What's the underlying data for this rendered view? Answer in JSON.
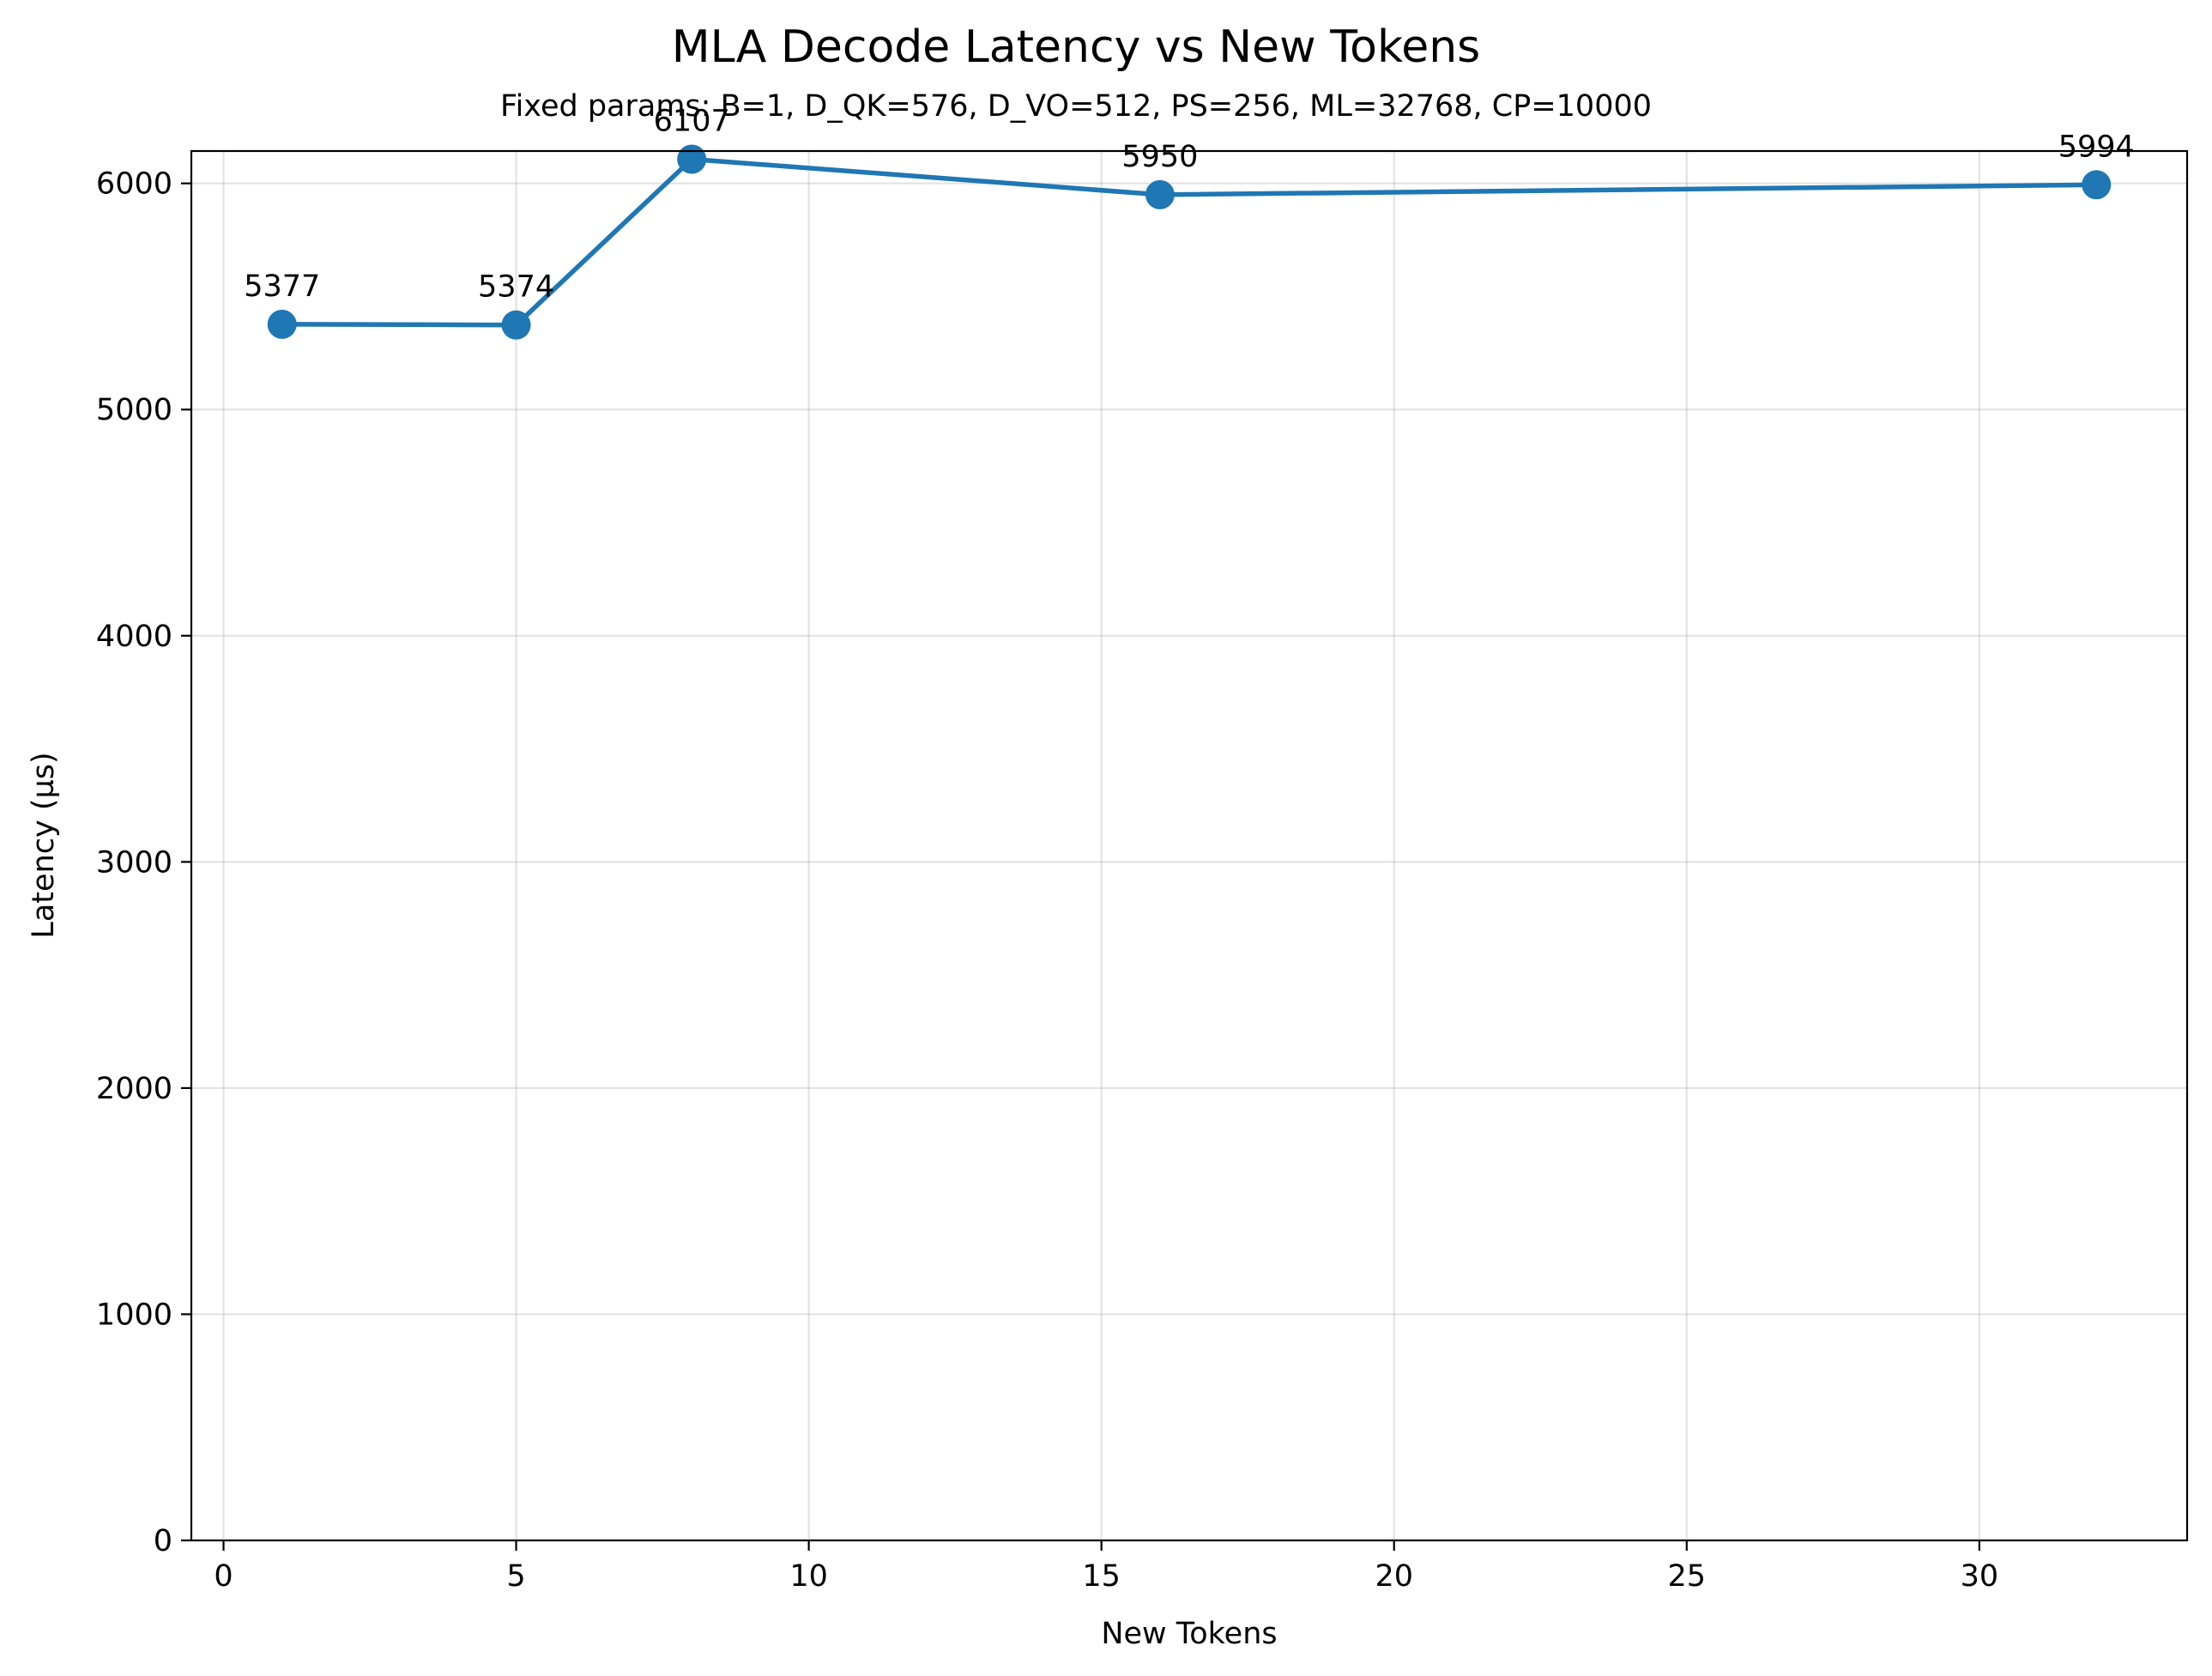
{
  "chart_data": {
    "type": "line",
    "title": "MLA Decode Latency vs New Tokens",
    "subtitle": "Fixed params: B=1, D_QK=576, D_VO=512, PS=256, ML=32768, CP=10000",
    "xlabel": "New Tokens",
    "ylabel": "Latency (µs)",
    "xlim": [
      -0.55,
      33.55
    ],
    "ylim": [
      0,
      6143
    ],
    "xticks": [
      0,
      5,
      10,
      15,
      20,
      25,
      30
    ],
    "yticks": [
      0,
      1000,
      2000,
      3000,
      4000,
      5000,
      6000
    ],
    "grid": true,
    "legend": "none",
    "series": [
      {
        "color": "#1f77b4",
        "marker": "circle",
        "x": [
          1,
          5,
          8,
          16,
          32
        ],
        "y": [
          5377,
          5374,
          6107,
          5950,
          5994
        ],
        "labels": [
          "5377",
          "5374",
          "6107",
          "5950",
          "5994"
        ]
      }
    ]
  }
}
